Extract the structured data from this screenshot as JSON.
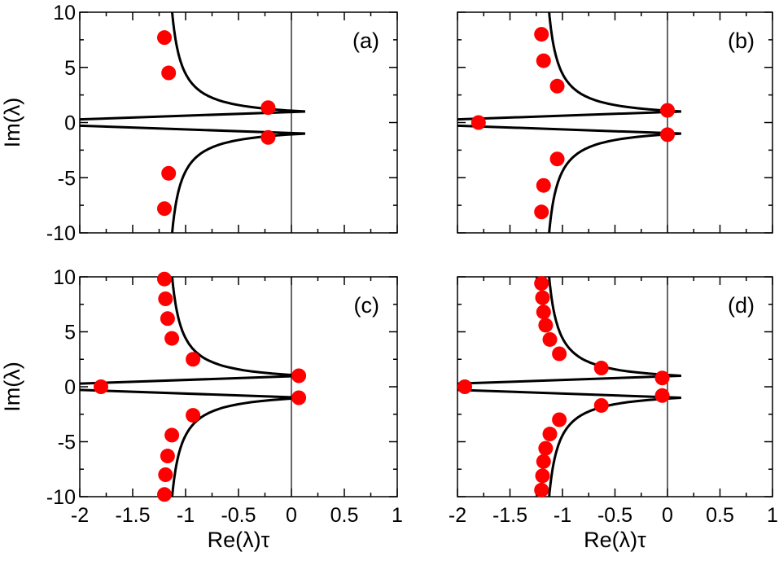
{
  "chart_data": [
    {
      "type": "scatter",
      "panel": "(a)",
      "xlabel": "",
      "ylabel": "Im(λ)",
      "xlim": [
        -2,
        1
      ],
      "ylim": [
        -10,
        10
      ],
      "xticks": [],
      "yticks": [
        "-10",
        "-5",
        "0",
        "5",
        "10"
      ],
      "points": [
        [
          -1.2,
          7.7
        ],
        [
          -1.16,
          4.5
        ],
        [
          -0.22,
          1.35
        ],
        [
          -0.22,
          -1.35
        ],
        [
          -1.16,
          -4.6
        ],
        [
          -1.2,
          -7.8
        ]
      ]
    },
    {
      "type": "scatter",
      "panel": "(b)",
      "xlabel": "",
      "ylabel": "",
      "xlim": [
        -2,
        1
      ],
      "ylim": [
        -10,
        10
      ],
      "xticks": [],
      "yticks": [],
      "points": [
        [
          -1.2,
          8.0
        ],
        [
          -1.18,
          5.6
        ],
        [
          -1.05,
          3.3
        ],
        [
          -1.8,
          0.0
        ],
        [
          0.0,
          1.1
        ],
        [
          0.0,
          -1.1
        ],
        [
          -1.05,
          -3.3
        ],
        [
          -1.18,
          -5.7
        ],
        [
          -1.2,
          -8.1
        ]
      ]
    },
    {
      "type": "scatter",
      "panel": "(c)",
      "xlabel": "Re(λ)τ",
      "ylabel": "Im(λ)",
      "xlim": [
        -2,
        1
      ],
      "ylim": [
        -10,
        10
      ],
      "xticks": [
        "-2",
        "-1.5",
        "-1",
        "-0.5",
        "0",
        "0.5",
        "1"
      ],
      "yticks": [
        "-10",
        "-5",
        "0",
        "5",
        "10"
      ],
      "points": [
        [
          -1.2,
          9.8
        ],
        [
          -1.19,
          8.0
        ],
        [
          -1.17,
          6.2
        ],
        [
          -1.13,
          4.4
        ],
        [
          -0.93,
          2.5
        ],
        [
          -1.8,
          0.0
        ],
        [
          0.07,
          1.0
        ],
        [
          0.07,
          -1.0
        ],
        [
          -0.93,
          -2.6
        ],
        [
          -1.13,
          -4.4
        ],
        [
          -1.17,
          -6.3
        ],
        [
          -1.19,
          -8.0
        ],
        [
          -1.2,
          -9.8
        ]
      ]
    },
    {
      "type": "scatter",
      "panel": "(d)",
      "xlabel": "Re(λ)τ",
      "ylabel": "",
      "xlim": [
        -2,
        1
      ],
      "ylim": [
        -10,
        10
      ],
      "xticks": [
        "-2",
        "-1.5",
        "-1",
        "-0.5",
        "0",
        "0.5",
        "1"
      ],
      "yticks": [],
      "points": [
        [
          -1.2,
          9.4
        ],
        [
          -1.19,
          8.1
        ],
        [
          -1.18,
          6.8
        ],
        [
          -1.16,
          5.6
        ],
        [
          -1.12,
          4.3
        ],
        [
          -1.03,
          3.0
        ],
        [
          -0.63,
          1.7
        ],
        [
          -1.93,
          0.0
        ],
        [
          -0.05,
          0.8
        ],
        [
          -0.05,
          -0.8
        ],
        [
          -0.63,
          -1.7
        ],
        [
          -1.03,
          -3.0
        ],
        [
          -1.12,
          -4.3
        ],
        [
          -1.16,
          -5.6
        ],
        [
          -1.18,
          -6.8
        ],
        [
          -1.19,
          -8.1
        ],
        [
          -1.2,
          -9.4
        ]
      ]
    }
  ],
  "colors": {
    "marker": "#ff0000",
    "line": "#000000",
    "background": "#ffffff"
  }
}
